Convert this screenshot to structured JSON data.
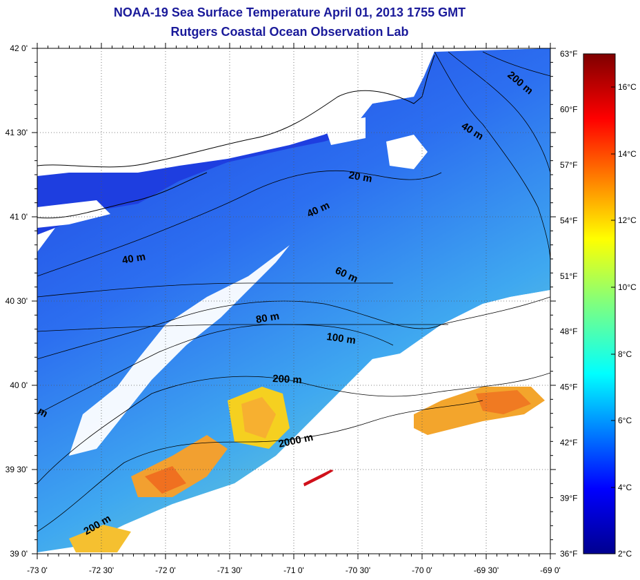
{
  "header": {
    "title": "NOAA-19 Sea Surface Temperature April 01, 2013 1755 GMT",
    "subtitle": "Rutgers Coastal Ocean Observation Lab"
  },
  "axes": {
    "lon_labels": [
      "-73 0'",
      "-72 30'",
      "-72 0'",
      "-71 30'",
      "-71 0'",
      "-70 30'",
      "-70 0'",
      "-69 30'",
      "-69 0'"
    ],
    "lat_labels": [
      "42 0'",
      "41 30'",
      "41 0'",
      "40 30'",
      "40 0'",
      "39 30'",
      "39 0'"
    ]
  },
  "depth_contours": [
    {
      "label": "200 m",
      "angle": 40
    },
    {
      "label": "40 m",
      "angle": 32
    },
    {
      "label": "20 m",
      "angle": 10
    },
    {
      "label": "40 m",
      "angle": -25
    },
    {
      "label": "40 m",
      "angle": -10
    },
    {
      "label": "60 m",
      "angle": 25
    },
    {
      "label": "80 m",
      "angle": -10
    },
    {
      "label": "100 m",
      "angle": 8
    },
    {
      "label": "200 m",
      "angle": 3
    },
    {
      "label": "2000 m",
      "angle": -12
    },
    {
      "label": "200 m",
      "angle": -30
    },
    {
      "label": "m",
      "angle": 30
    }
  ],
  "colorbar": {
    "celsius_labels": [
      "16°C",
      "14°C",
      "12°C",
      "10°C",
      "8°C",
      "6°C",
      "4°C",
      "2°C"
    ],
    "fahrenheit_labels": [
      "63°F",
      "60°F",
      "57°F",
      "54°F",
      "51°F",
      "48°F",
      "45°F",
      "42°F",
      "39°F",
      "36°F"
    ]
  }
}
